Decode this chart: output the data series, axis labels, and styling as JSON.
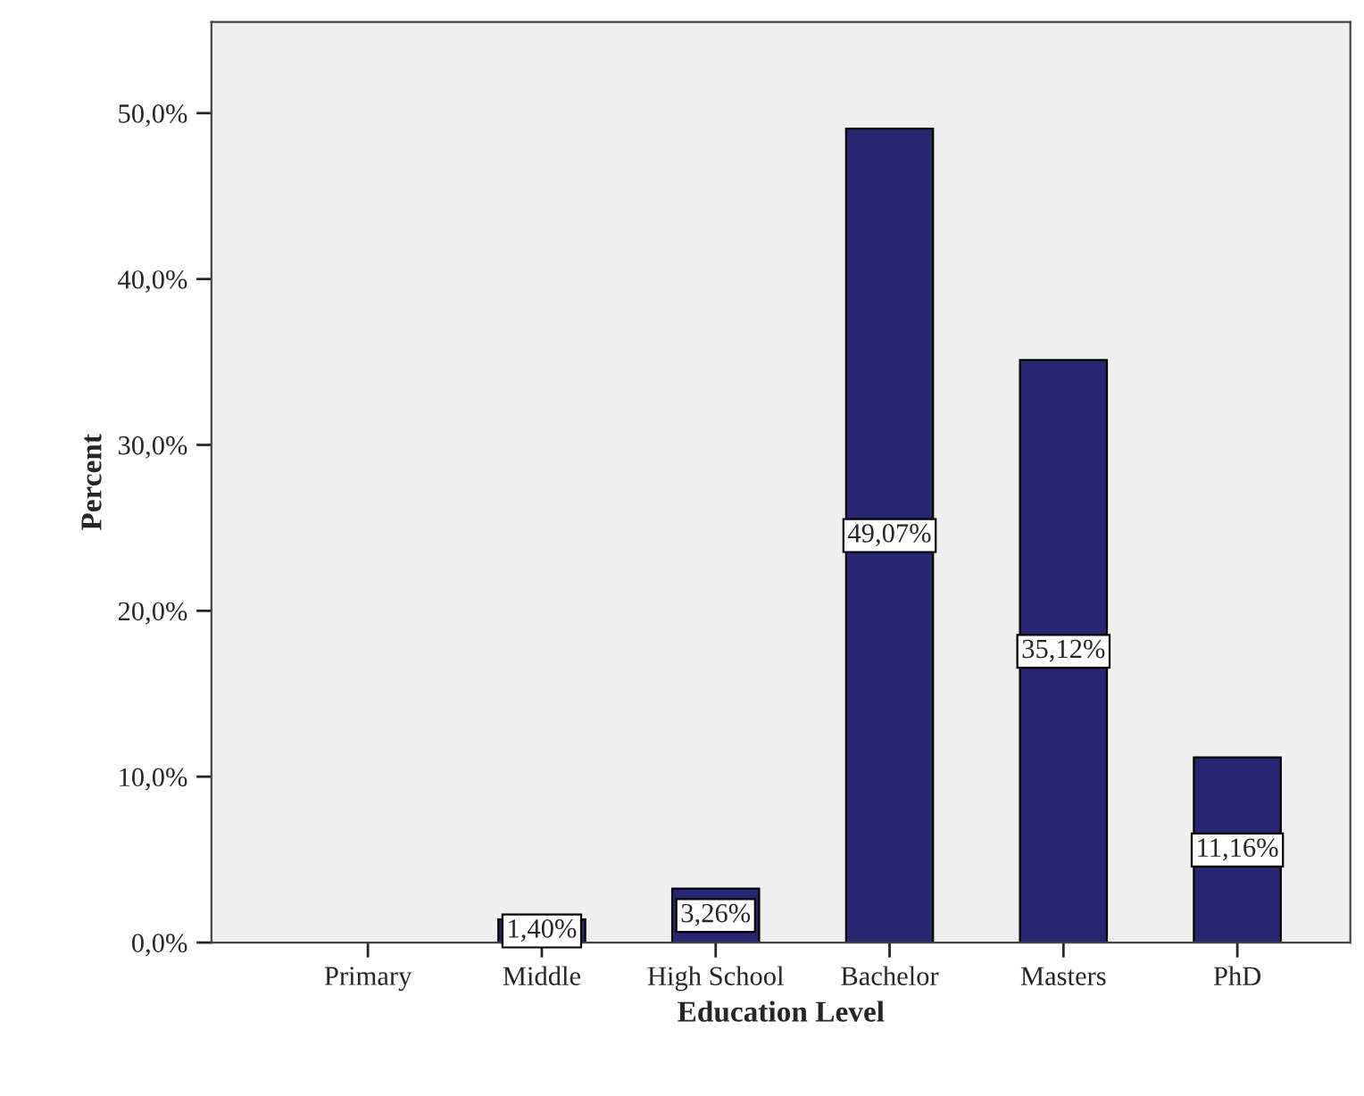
{
  "chart_data": {
    "type": "bar",
    "xlabel": "Education Level",
    "ylabel": "Percent",
    "categories": [
      "Primary",
      "Middle",
      "High School",
      "Bachelor",
      "Masters",
      "PhD"
    ],
    "values": [
      0,
      1.4,
      3.26,
      49.07,
      35.12,
      11.16
    ],
    "value_labels": [
      null,
      "1,40%",
      "3,26%",
      "49,07%",
      "35,12%",
      "11,16%"
    ],
    "color": "#262770",
    "ylim": [
      0,
      55.5
    ],
    "yticks": [
      {
        "value": 0,
        "label": "0,0%"
      },
      {
        "value": 10,
        "label": "10,0%"
      },
      {
        "value": 20,
        "label": "20,0%"
      },
      {
        "value": 30,
        "label": "30,0%"
      },
      {
        "value": 40,
        "label": "40,0%"
      },
      {
        "value": 50,
        "label": "50,0%"
      }
    ],
    "grid": false,
    "legend": false
  }
}
